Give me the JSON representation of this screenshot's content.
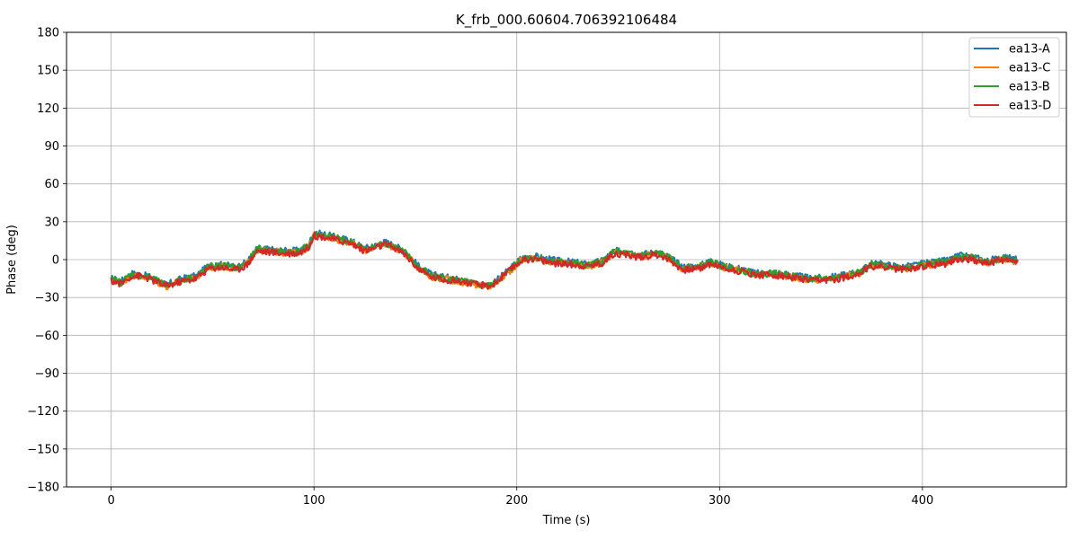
{
  "chart_data": {
    "type": "line",
    "title": "K_frb_000.60604.706392106484",
    "xlabel": "Time (s)",
    "ylabel": "Phase (deg)",
    "xlim": [
      -22,
      471
    ],
    "ylim": [
      -180,
      180
    ],
    "xticks": [
      0,
      100,
      200,
      300,
      400
    ],
    "yticks": [
      180,
      150,
      120,
      90,
      60,
      30,
      0,
      -30,
      -60,
      -90,
      -120,
      -150,
      -180
    ],
    "ytick_labels": [
      "180",
      "150",
      "120",
      "90",
      "60",
      "30",
      "0",
      "−30",
      "−60",
      "−90",
      "−120",
      "−150",
      "−180"
    ],
    "grid": true,
    "legend_position": "top-right",
    "x": [
      0,
      5,
      10,
      15,
      20,
      27,
      35,
      42,
      48,
      55,
      62,
      67,
      72,
      78,
      85,
      92,
      97,
      100,
      105,
      110,
      118,
      125,
      130,
      135,
      140,
      145,
      152,
      158,
      165,
      172,
      180,
      187,
      192,
      197,
      202,
      208,
      213,
      220,
      228,
      235,
      242,
      248,
      253,
      260,
      265,
      270,
      275,
      282,
      290,
      296,
      302,
      310,
      318,
      325,
      335,
      345,
      355,
      362,
      370,
      375,
      382,
      390,
      398,
      405,
      412,
      418,
      425,
      432,
      440,
      447
    ],
    "series": [
      {
        "name": "ea13-A",
        "color": "#1f77b4",
        "offset": 1.0,
        "values": [
          -16,
          -18,
          -12,
          -13,
          -15,
          -21,
          -16,
          -14,
          -6,
          -5,
          -7,
          -3,
          8,
          7,
          6,
          6,
          10,
          20,
          19,
          17,
          14,
          8,
          10,
          13,
          10,
          5,
          -7,
          -13,
          -15,
          -17,
          -20,
          -21,
          -15,
          -8,
          0,
          2,
          0,
          -2,
          -3,
          -5,
          -2,
          6,
          5,
          3,
          4,
          5,
          1,
          -7,
          -6,
          -2,
          -6,
          -8,
          -12,
          -11,
          -13,
          -16,
          -15,
          -13,
          -10,
          -4,
          -5,
          -7,
          -5,
          -3,
          -2,
          2,
          1,
          -2,
          1,
          -1
        ]
      },
      {
        "name": "ea13-C",
        "color": "#ff7f0e",
        "offset": -0.5,
        "values": [
          -16,
          -18,
          -12,
          -13,
          -15,
          -21,
          -16,
          -14,
          -6,
          -5,
          -7,
          -3,
          8,
          7,
          6,
          6,
          10,
          20,
          19,
          17,
          14,
          8,
          10,
          13,
          10,
          5,
          -7,
          -13,
          -15,
          -17,
          -20,
          -21,
          -15,
          -8,
          0,
          2,
          0,
          -2,
          -3,
          -5,
          -2,
          6,
          5,
          3,
          4,
          5,
          1,
          -7,
          -6,
          -2,
          -6,
          -8,
          -12,
          -11,
          -13,
          -16,
          -15,
          -13,
          -10,
          -4,
          -5,
          -7,
          -5,
          -3,
          -2,
          2,
          1,
          -2,
          1,
          -1
        ]
      },
      {
        "name": "ea13-B",
        "color": "#2ca02c",
        "offset": 0.3,
        "values": [
          -16,
          -18,
          -12,
          -13,
          -15,
          -21,
          -16,
          -14,
          -6,
          -5,
          -7,
          -3,
          8,
          7,
          6,
          6,
          10,
          20,
          19,
          17,
          14,
          8,
          10,
          13,
          10,
          5,
          -7,
          -13,
          -15,
          -17,
          -20,
          -21,
          -15,
          -8,
          0,
          2,
          0,
          -2,
          -3,
          -5,
          -2,
          6,
          5,
          3,
          4,
          5,
          1,
          -7,
          -6,
          -2,
          -6,
          -8,
          -12,
          -11,
          -13,
          -16,
          -15,
          -13,
          -10,
          -4,
          -5,
          -7,
          -5,
          -3,
          -2,
          2,
          1,
          -2,
          1,
          -1
        ]
      },
      {
        "name": "ea13-D",
        "color": "#d62728",
        "offset": 0.0,
        "values": [
          -17,
          -19,
          -13,
          -13,
          -16,
          -21,
          -17,
          -15,
          -7,
          -6,
          -8,
          -4,
          7,
          6,
          5,
          5,
          9,
          19,
          18,
          16,
          13,
          7,
          9,
          12,
          9,
          4,
          -8,
          -14,
          -16,
          -17,
          -20,
          -21,
          -15,
          -8,
          -1,
          1,
          -1,
          -3,
          -4,
          -5,
          -3,
          5,
          4,
          2,
          3,
          4,
          0,
          -8,
          -7,
          -3,
          -7,
          -9,
          -12,
          -12,
          -14,
          -17,
          -16,
          -14,
          -10,
          -5,
          -6,
          -8,
          -6,
          -4,
          -3,
          1,
          0,
          -3,
          0,
          -2
        ]
      }
    ]
  }
}
